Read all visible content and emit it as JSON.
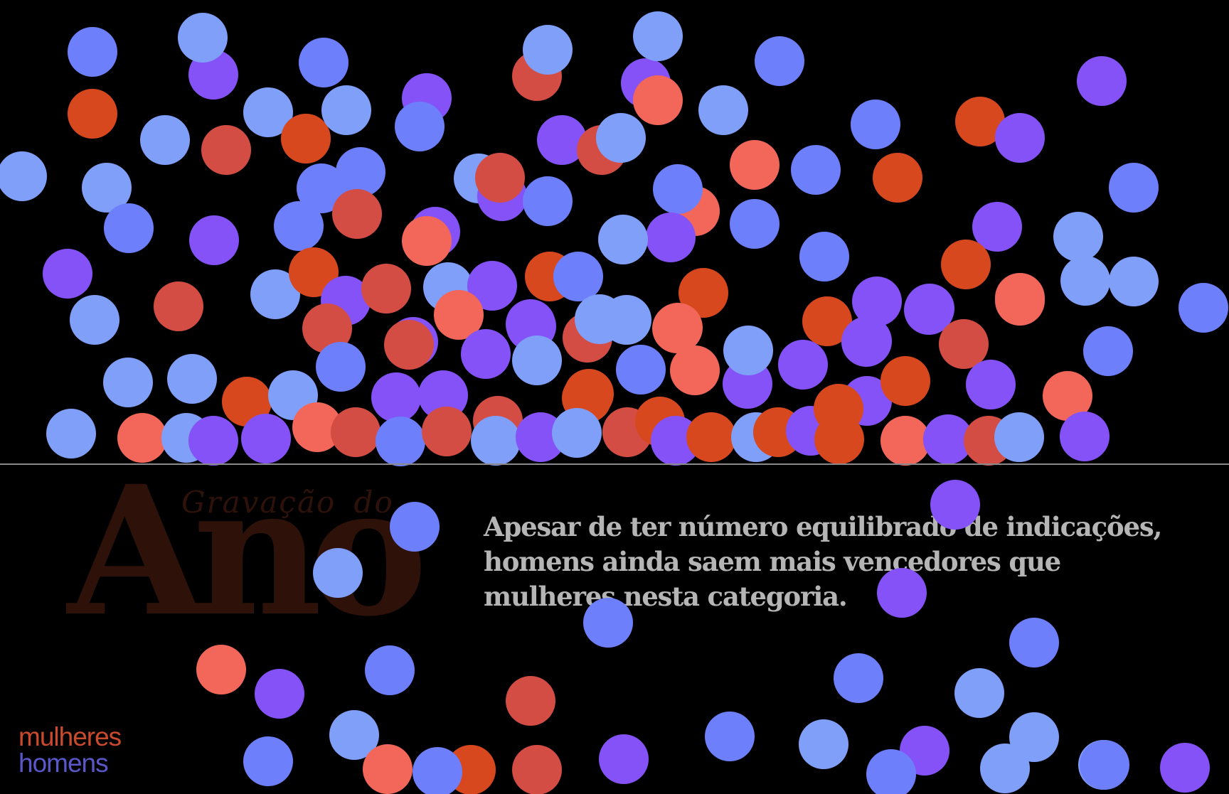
{
  "title": {
    "small": "Gravação do",
    "big": "Ano"
  },
  "description": "Apesar de ter número equilibrado de indicações, homens ainda saem mais vencedores que mulheres nesta categoria.",
  "legend": {
    "women": "mulheres",
    "men": "homens"
  },
  "colors": {
    "background": "#000000",
    "women_winner": "#d8481f",
    "women_nominee": "#d44d44",
    "women_light": "#f2675a",
    "men_blue": "#6d7ffa",
    "men_light": "#7f9ff8",
    "men_purple": "#8452f7"
  }
}
